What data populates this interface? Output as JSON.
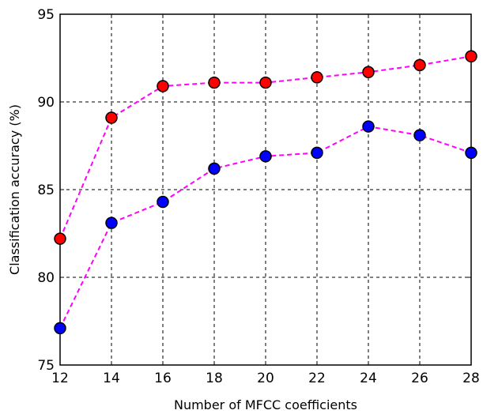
{
  "chart_data": {
    "type": "line",
    "xlabel": "Number of MFCC coefficients",
    "ylabel": "Classification accuracy (%)",
    "xlim": [
      12,
      28
    ],
    "ylim": [
      75,
      95
    ],
    "xticks": [
      "12",
      "14",
      "16",
      "18",
      "20",
      "22",
      "24",
      "26",
      "28"
    ],
    "yticks": [
      "75",
      "80",
      "85",
      "90",
      "95"
    ],
    "grid": true,
    "x": [
      12,
      14,
      16,
      18,
      20,
      22,
      24,
      26,
      28
    ],
    "series": [
      {
        "color": "#ff0000",
        "line_color": "#ff00ff",
        "line_style": "dashed",
        "marker": "circle",
        "values": [
          82.2,
          89.1,
          90.9,
          91.1,
          91.1,
          91.4,
          91.7,
          92.1,
          92.6
        ]
      },
      {
        "color": "#0000ff",
        "line_color": "#ff00ff",
        "line_style": "dashed",
        "marker": "circle",
        "values": [
          77.1,
          83.1,
          84.3,
          86.2,
          86.9,
          87.1,
          88.6,
          88.1,
          87.1
        ]
      }
    ]
  }
}
